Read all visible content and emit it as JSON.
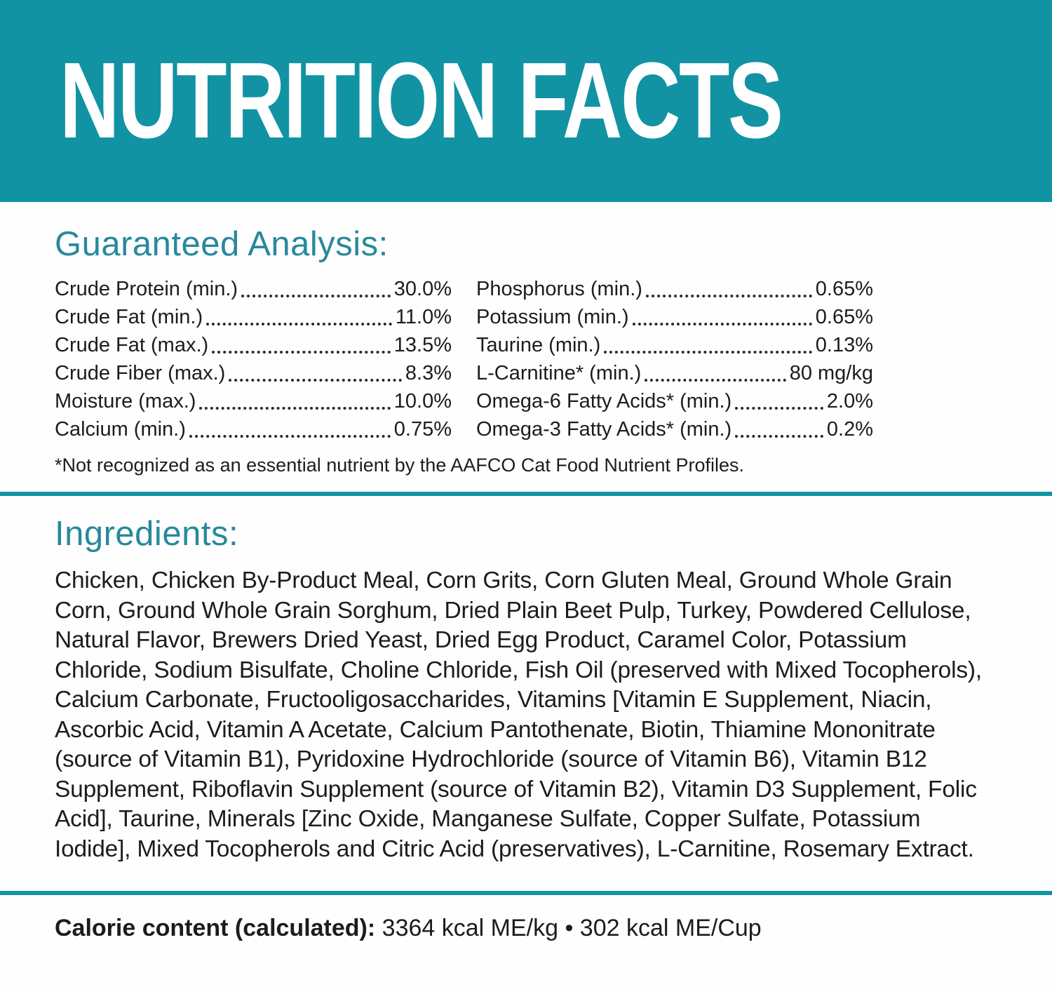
{
  "colors": {
    "teal_band": "#1193A3",
    "teal_heading": "#28899C",
    "text": "#1c1c1c"
  },
  "header": {
    "title": "NUTRITION FACTS"
  },
  "guaranteed_analysis": {
    "heading": "Guaranteed Analysis:",
    "left_column": [
      {
        "label": "Crude Protein (min.)",
        "value": "30.0%"
      },
      {
        "label": "Crude Fat (min.)",
        "value": "11.0%"
      },
      {
        "label": "Crude Fat (max.)",
        "value": "13.5%"
      },
      {
        "label": "Crude Fiber (max.)",
        "value": "8.3%"
      },
      {
        "label": "Moisture (max.)",
        "value": "10.0%"
      },
      {
        "label": "Calcium (min.)",
        "value": "0.75%"
      }
    ],
    "right_column": [
      {
        "label": "Phosphorus (min.)",
        "value": "0.65%"
      },
      {
        "label": "Potassium (min.)",
        "value": "0.65%"
      },
      {
        "label": "Taurine (min.)",
        "value": "0.13%"
      },
      {
        "label": "L-Carnitine* (min.)",
        "value": "80 mg/kg"
      },
      {
        "label": "Omega-6 Fatty Acids* (min.)",
        "value": "2.0%"
      },
      {
        "label": "Omega-3 Fatty Acids* (min.)",
        "value": "0.2%"
      }
    ],
    "footnote": "*Not recognized as an essential nutrient by the AAFCO Cat Food Nutrient Profiles."
  },
  "ingredients": {
    "heading": "Ingredients:",
    "text": "Chicken, Chicken By-Product Meal, Corn Grits, Corn Gluten Meal, Ground Whole Grain Corn, Ground Whole Grain Sorghum, Dried Plain Beet Pulp, Turkey, Powdered Cellulose, Natural Flavor, Brewers Dried Yeast, Dried Egg Product, Caramel Color, Potassium Chloride, Sodium Bisulfate, Choline Chloride, Fish Oil (preserved with Mixed Tocopherols), Calcium Carbonate, Fructooligosaccharides, Vitamins [Vitamin E Supplement, Niacin, Ascorbic Acid, Vitamin A Acetate, Calcium Pantothenate, Biotin, Thiamine Mononitrate (source of Vitamin B1), Pyridoxine Hydrochloride (source of Vitamin B6), Vitamin B12 Supplement, Riboflavin Supplement (source of Vitamin B2), Vitamin D3 Supplement, Folic Acid], Taurine, Minerals [Zinc Oxide, Manganese Sulfate, Copper Sulfate, Potassium Iodide], Mixed Tocopherols and Citric Acid (preservatives), L-Carnitine, Rosemary Extract."
  },
  "calorie_content": {
    "label": "Calorie content (calculated):",
    "value": "3364 kcal ME/kg • 302 kcal ME/Cup"
  }
}
